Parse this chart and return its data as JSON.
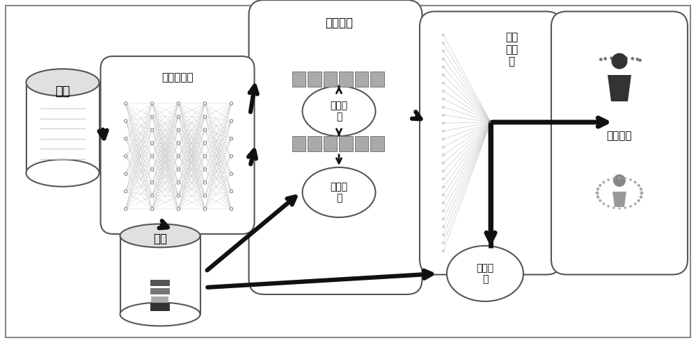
{
  "bg_color": "#ffffff",
  "box_fill": "#ffffff",
  "box_edge": "#555555",
  "arrow_color": "#111111",
  "gray_bar_color": "#999999",
  "labels": {
    "text_db": "文本",
    "feature_extractor": "特征提取器",
    "guide_network": "向导网络",
    "feature_loss": "特征损\n失",
    "connect_loss": "连接损\n失",
    "classifier": "排序\n分类\n器",
    "class_loss": "分类损\n失",
    "student_portrait": "学生画像",
    "label_db": "标签"
  },
  "outer_bg": "#eeeeee"
}
